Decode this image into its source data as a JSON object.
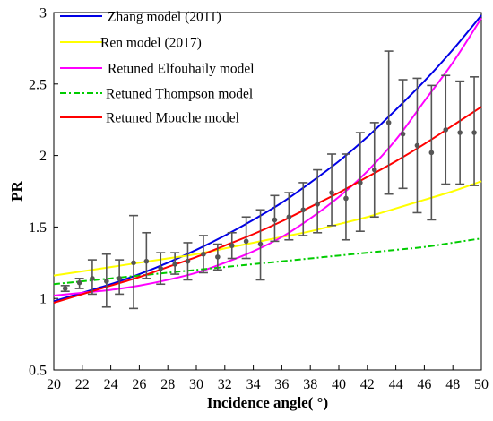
{
  "chart_data": {
    "type": "line",
    "xlabel": "Incidence angle( °)",
    "ylabel": "PR",
    "xlim": [
      20,
      50
    ],
    "ylim": [
      0.5,
      3
    ],
    "xticks": [
      "20",
      "22",
      "24",
      "26",
      "28",
      "30",
      "32",
      "34",
      "36",
      "38",
      "40",
      "42",
      "44",
      "46",
      "48",
      "50"
    ],
    "yticks": [
      "0.5",
      "1",
      "1.5",
      "2",
      "2.5",
      "3"
    ],
    "grid": false,
    "legend_position": "top-left",
    "series": [
      {
        "name": "Zhang model (2011)",
        "color": "#0000e6",
        "style": "solid",
        "x": [
          20,
          22,
          24,
          26,
          28,
          30,
          32,
          34,
          36,
          38,
          40,
          42,
          44,
          46,
          48,
          50
        ],
        "y": [
          0.98,
          1.04,
          1.1,
          1.17,
          1.25,
          1.34,
          1.44,
          1.55,
          1.67,
          1.81,
          1.96,
          2.13,
          2.32,
          2.52,
          2.74,
          2.98
        ]
      },
      {
        "name": "Ren model (2017)",
        "color": "#ffff00",
        "style": "solid",
        "x": [
          20,
          22,
          24,
          26,
          28,
          30,
          32,
          34,
          36,
          38,
          40,
          42,
          44,
          46,
          48,
          50
        ],
        "y": [
          1.16,
          1.19,
          1.22,
          1.25,
          1.28,
          1.31,
          1.35,
          1.39,
          1.43,
          1.47,
          1.52,
          1.57,
          1.63,
          1.69,
          1.75,
          1.82
        ]
      },
      {
        "name": "Retuned Elfouhaily model",
        "color": "#ff00ff",
        "style": "solid",
        "x": [
          20,
          22,
          24,
          26,
          28,
          30,
          32,
          34,
          36,
          38,
          40,
          42,
          44,
          46,
          48,
          50
        ],
        "y": [
          1.02,
          1.04,
          1.06,
          1.09,
          1.13,
          1.18,
          1.25,
          1.33,
          1.43,
          1.56,
          1.71,
          1.89,
          2.11,
          2.38,
          2.65,
          2.96
        ]
      },
      {
        "name": "Retuned Thompson model",
        "color": "#00cc00",
        "style": "dashdot",
        "x": [
          20,
          22,
          24,
          26,
          28,
          30,
          32,
          34,
          36,
          38,
          40,
          42,
          44,
          46,
          48,
          50
        ],
        "y": [
          1.1,
          1.12,
          1.14,
          1.16,
          1.18,
          1.2,
          1.22,
          1.24,
          1.26,
          1.28,
          1.3,
          1.32,
          1.34,
          1.36,
          1.39,
          1.42
        ]
      },
      {
        "name": "Retuned Mouche model",
        "color": "#ff0000",
        "style": "solid",
        "x": [
          20,
          22,
          24,
          26,
          28,
          30,
          32,
          34,
          36,
          38,
          40,
          42,
          44,
          46,
          48,
          50
        ],
        "y": [
          0.97,
          1.03,
          1.09,
          1.15,
          1.22,
          1.29,
          1.37,
          1.45,
          1.54,
          1.64,
          1.74,
          1.85,
          1.96,
          2.08,
          2.21,
          2.34
        ]
      }
    ],
    "observations": {
      "color": "#555555",
      "x": [
        20.8,
        21.8,
        22.7,
        23.7,
        24.6,
        25.6,
        26.5,
        27.5,
        28.5,
        29.4,
        30.5,
        31.5,
        32.5,
        33.5,
        34.5,
        35.5,
        36.5,
        37.5,
        38.5,
        39.5,
        40.5,
        41.5,
        42.5,
        43.5,
        44.5,
        45.5,
        46.5,
        47.5,
        48.5,
        49.5
      ],
      "y": [
        1.07,
        1.11,
        1.14,
        1.12,
        1.14,
        1.25,
        1.26,
        1.21,
        1.24,
        1.26,
        1.31,
        1.29,
        1.37,
        1.4,
        1.38,
        1.55,
        1.57,
        1.62,
        1.66,
        1.74,
        1.7,
        1.81,
        1.9,
        2.23,
        2.15,
        2.07,
        2.02,
        2.18,
        2.16,
        2.16
      ],
      "lower": [
        1.05,
        1.07,
        1.03,
        0.94,
        1.03,
        0.93,
        1.14,
        1.1,
        1.17,
        1.13,
        1.18,
        1.2,
        1.28,
        1.28,
        1.13,
        1.4,
        1.41,
        1.44,
        1.46,
        1.51,
        1.41,
        1.47,
        1.57,
        1.73,
        1.77,
        1.6,
        1.55,
        1.8,
        1.8,
        1.79
      ],
      "upper": [
        1.09,
        1.14,
        1.27,
        1.31,
        1.27,
        1.58,
        1.46,
        1.32,
        1.32,
        1.39,
        1.44,
        1.38,
        1.46,
        1.57,
        1.62,
        1.72,
        1.74,
        1.81,
        1.9,
        2.01,
        2.01,
        2.16,
        2.23,
        2.73,
        2.53,
        2.54,
        2.49,
        2.56,
        2.52,
        2.55
      ]
    }
  }
}
